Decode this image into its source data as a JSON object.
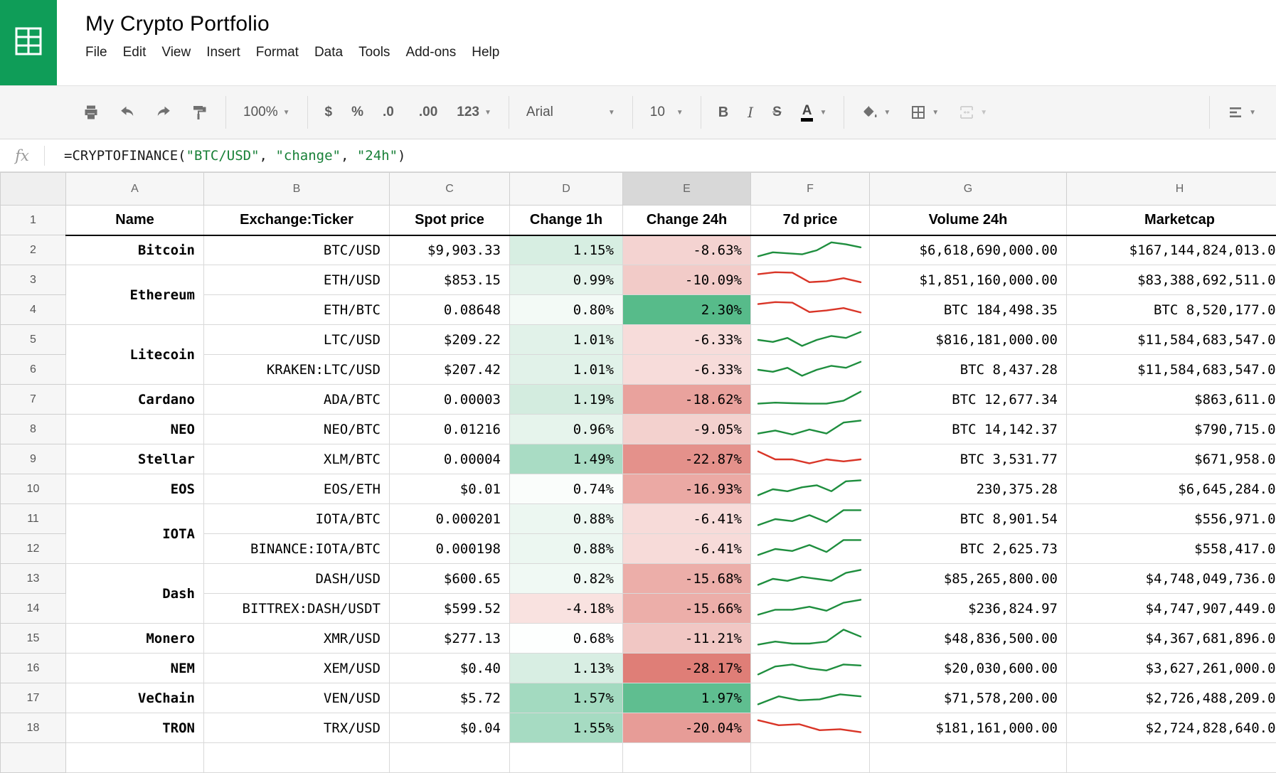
{
  "app": {
    "title": "My Crypto Portfolio",
    "menus": [
      "File",
      "Edit",
      "View",
      "Insert",
      "Format",
      "Data",
      "Tools",
      "Add-ons",
      "Help"
    ]
  },
  "toolbar": {
    "zoom": "100%",
    "currency": "$",
    "percent": "%",
    "decimal_decrease": ".0",
    "decimal_increase": ".00",
    "more_formats": "123",
    "font_name": "Arial",
    "font_size": "10",
    "bold": "B",
    "italic": "I",
    "strikethrough": "S",
    "text_color": "A"
  },
  "formula_bar": {
    "fx": "fx",
    "parts": [
      {
        "text": "=CRYPTOFINANCE(",
        "color": "#1b1b1b"
      },
      {
        "text": "\"BTC/USD\"",
        "color": "#188038"
      },
      {
        "text": ", ",
        "color": "#1b1b1b"
      },
      {
        "text": "\"change\"",
        "color": "#188038"
      },
      {
        "text": ", ",
        "color": "#1b1b1b"
      },
      {
        "text": "\"24h\"",
        "color": "#188038"
      },
      {
        "text": ")",
        "color": "#1b1b1b"
      }
    ]
  },
  "colors": {
    "logo_green": "#0f9d58",
    "spark_green": "#1e8e3e",
    "spark_red": "#d93527",
    "selected_header_bg": "#d8d8d8"
  },
  "grid": {
    "column_letters": [
      "A",
      "B",
      "C",
      "D",
      "E",
      "F",
      "G",
      "H"
    ],
    "selected_column": "E",
    "header_row_number": "1",
    "headers": [
      "Name",
      "Exchange:Ticker",
      "Spot price",
      "Change 1h",
      "Change 24h",
      "7d price",
      "Volume 24h",
      "Marketcap"
    ],
    "rows": [
      {
        "n": 2,
        "name": "Bitcoin",
        "span": 1,
        "ticker": "BTC/USD",
        "spot": "$9,903.33",
        "c1h": "1.15%",
        "c1h_bg": "#d7eee2",
        "c24h": "-8.63%",
        "c24h_bg": "#f4d3d1",
        "trend": "up",
        "spark": [
          2,
          4,
          3.5,
          3,
          5,
          9,
          8,
          6.5
        ],
        "vol": "$6,618,690,000.00",
        "cap": "$167,144,824,013.00"
      },
      {
        "n": 3,
        "name": "Ethereum",
        "span": 2,
        "ticker": "ETH/USD",
        "spot": "$853.15",
        "c1h": "0.99%",
        "c1h_bg": "#e4f3eb",
        "c24h": "-10.09%",
        "c24h_bg": "#f2cbc8",
        "trend": "down",
        "spark": [
          8,
          9,
          8.8,
          4,
          4.5,
          6,
          4
        ],
        "vol": "$1,851,160,000.00",
        "cap": "$83,388,692,511.00"
      },
      {
        "n": 4,
        "name": null,
        "span": 1,
        "ticker": "ETH/BTC",
        "spot": "0.08648",
        "c1h": "0.80%",
        "c1h_bg": "#f3faf6",
        "c24h": "2.30%",
        "c24h_bg": "#57bb8a",
        "trend": "down",
        "spark": [
          8,
          9,
          8.7,
          4,
          4.8,
          6,
          3.8
        ],
        "vol": "BTC 184,498.35",
        "cap": "BTC 8,520,177.00"
      },
      {
        "n": 5,
        "name": "Litecoin",
        "span": 2,
        "ticker": "LTC/USD",
        "spot": "$209.22",
        "c1h": "1.01%",
        "c1h_bg": "#e1f2e9",
        "c24h": "-6.33%",
        "c24h_bg": "#f7dcda",
        "trend": "up",
        "spark": [
          5,
          4,
          6,
          2,
          5,
          7,
          6,
          9
        ],
        "vol": "$816,181,000.00",
        "cap": "$11,584,683,547.00"
      },
      {
        "n": 6,
        "name": null,
        "span": 1,
        "ticker": "KRAKEN:LTC/USD",
        "spot": "$207.42",
        "c1h": "1.01%",
        "c1h_bg": "#e1f2e9",
        "c24h": "-6.33%",
        "c24h_bg": "#f7dcda",
        "trend": "up",
        "spark": [
          5,
          4,
          6,
          2,
          5,
          7,
          6,
          9
        ],
        "vol": "BTC 8,437.28",
        "cap": "$11,584,683,547.00"
      },
      {
        "n": 7,
        "name": "Cardano",
        "span": 1,
        "ticker": "ADA/BTC",
        "spot": "0.00003",
        "c1h": "1.19%",
        "c1h_bg": "#d3ecdf",
        "c24h": "-18.62%",
        "c24h_bg": "#e9a29d",
        "trend": "up",
        "spark": [
          3,
          3.5,
          3.2,
          3,
          3,
          4.5,
          9
        ],
        "vol": "BTC 12,677.34",
        "cap": "$863,611.00"
      },
      {
        "n": 8,
        "name": "NEO",
        "span": 1,
        "ticker": "NEO/BTC",
        "spot": "0.01216",
        "c1h": "0.96%",
        "c1h_bg": "#e6f4ec",
        "c24h": "-9.05%",
        "c24h_bg": "#f3d1ce",
        "trend": "up",
        "spark": [
          3,
          4.5,
          2.5,
          5,
          3,
          8.5,
          9.5
        ],
        "vol": "BTC 14,142.37",
        "cap": "$790,715.00"
      },
      {
        "n": 9,
        "name": "Stellar",
        "span": 1,
        "ticker": "XLM/BTC",
        "spot": "0.00004",
        "c1h": "1.49%",
        "c1h_bg": "#a9dcc4",
        "c24h": "-22.87%",
        "c24h_bg": "#e4918b",
        "trend": "down",
        "spark": [
          9,
          5,
          5,
          3,
          5,
          4,
          5
        ],
        "vol": "BTC 3,531.77",
        "cap": "$671,958.00"
      },
      {
        "n": 10,
        "name": "EOS",
        "span": 1,
        "ticker": "EOS/ETH",
        "spot": "$0.01",
        "c1h": "0.74%",
        "c1h_bg": "#fafdfb",
        "c24h": "-16.93%",
        "c24h_bg": "#eba9a4",
        "trend": "up",
        "spark": [
          2,
          5,
          4,
          6,
          7,
          4,
          9,
          9.5
        ],
        "vol": "230,375.28",
        "cap": "$6,645,284.00"
      },
      {
        "n": 11,
        "name": "IOTA",
        "span": 2,
        "ticker": "IOTA/BTC",
        "spot": "0.000201",
        "c1h": "0.88%",
        "c1h_bg": "#ecf7f1",
        "c24h": "-6.41%",
        "c24h_bg": "#f7dbd9",
        "trend": "up",
        "spark": [
          2,
          5,
          4,
          7,
          3.5,
          9.5,
          9.5
        ],
        "vol": "BTC 8,901.54",
        "cap": "$556,971.00"
      },
      {
        "n": 12,
        "name": null,
        "span": 1,
        "ticker": "BINANCE:IOTA/BTC",
        "spot": "0.000198",
        "c1h": "0.88%",
        "c1h_bg": "#ecf7f1",
        "c24h": "-6.41%",
        "c24h_bg": "#f7dbd9",
        "trend": "up",
        "spark": [
          2,
          5,
          4,
          7,
          3.5,
          9.5,
          9.5
        ],
        "vol": "BTC 2,625.73",
        "cap": "$558,417.00"
      },
      {
        "n": 13,
        "name": "Dash",
        "span": 2,
        "ticker": "DASH/USD",
        "spot": "$600.65",
        "c1h": "0.82%",
        "c1h_bg": "#f0f9f4",
        "c24h": "-15.68%",
        "c24h_bg": "#ecaea9",
        "trend": "up",
        "spark": [
          2,
          5,
          4,
          6,
          5,
          4,
          8,
          9.5
        ],
        "vol": "$85,265,800.00",
        "cap": "$4,748,049,736.00"
      },
      {
        "n": 14,
        "name": null,
        "span": 1,
        "ticker": "BITTREX:DASH/USDT",
        "spot": "$599.52",
        "c1h": "-4.18%",
        "c1h_bg": "#f9e2e0",
        "c24h": "-15.66%",
        "c24h_bg": "#ecaea9",
        "trend": "up",
        "spark": [
          2,
          4.5,
          4.5,
          6,
          4,
          8,
          9.5
        ],
        "vol": "$236,824.97",
        "cap": "$4,747,907,449.00"
      },
      {
        "n": 15,
        "name": "Monero",
        "span": 1,
        "ticker": "XMR/USD",
        "spot": "$277.13",
        "c1h": "0.68%",
        "c1h_bg": "#fdfffe",
        "c24h": "-11.21%",
        "c24h_bg": "#f1c7c4",
        "trend": "up",
        "spark": [
          2,
          3.5,
          2.5,
          2.5,
          3.5,
          9.5,
          6
        ],
        "vol": "$48,836,500.00",
        "cap": "$4,367,681,896.00"
      },
      {
        "n": 16,
        "name": "NEM",
        "span": 1,
        "ticker": "XEM/USD",
        "spot": "$0.40",
        "c1h": "1.13%",
        "c1h_bg": "#d8eee3",
        "c24h": "-28.17%",
        "c24h_bg": "#df7e77",
        "trend": "up",
        "spark": [
          2,
          6,
          7,
          5,
          4,
          7,
          6.5
        ],
        "vol": "$20,030,600.00",
        "cap": "$3,627,261,000.00"
      },
      {
        "n": 17,
        "name": "VeChain",
        "span": 1,
        "ticker": "VEN/USD",
        "spot": "$5.72",
        "c1h": "1.57%",
        "c1h_bg": "#a3dac0",
        "c24h": "1.97%",
        "c24h_bg": "#5fbe90",
        "trend": "up",
        "spark": [
          2,
          6,
          4,
          4.5,
          7,
          6
        ],
        "vol": "$71,578,200.00",
        "cap": "$2,726,488,209.00"
      },
      {
        "n": 18,
        "name": "TRON",
        "span": 1,
        "ticker": "TRX/USD",
        "spot": "$0.04",
        "c1h": "1.55%",
        "c1h_bg": "#a6dbc2",
        "c24h": "-20.04%",
        "c24h_bg": "#e79c97",
        "trend": "down",
        "spark": [
          9,
          6.5,
          7,
          4,
          4.5,
          3
        ],
        "vol": "$181,161,000.00",
        "cap": "$2,724,828,640.00"
      }
    ]
  }
}
